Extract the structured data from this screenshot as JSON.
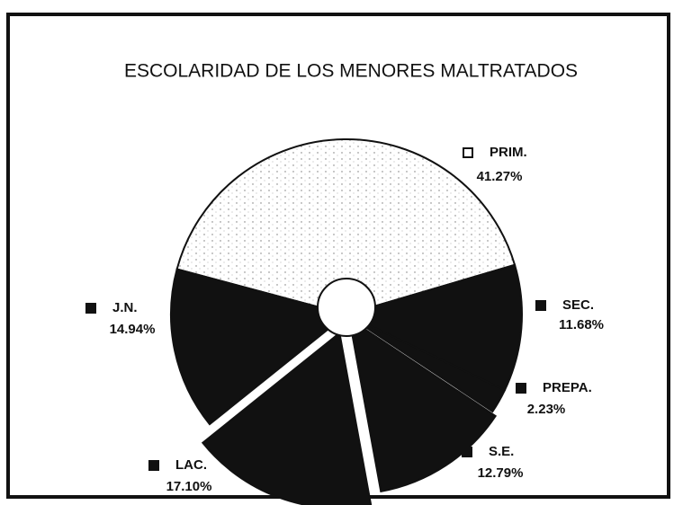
{
  "chart_data": {
    "type": "pie",
    "title": "ESCOLARIDAD DE LOS MENORES MALTRATADOS",
    "categories": [
      "PRIM.",
      "SEC.",
      "PREPA.",
      "S.E.",
      "LAC.",
      "J.N."
    ],
    "values": [
      41.27,
      11.68,
      2.23,
      12.79,
      17.1,
      14.94
    ],
    "value_labels": [
      "41.27%",
      "11.68%",
      "2.23%",
      "12.79%",
      "17.10%",
      "14.94%"
    ],
    "colors": [
      "#ffffff",
      "#111111",
      "#111111",
      "#111111",
      "#111111",
      "#111111"
    ]
  }
}
